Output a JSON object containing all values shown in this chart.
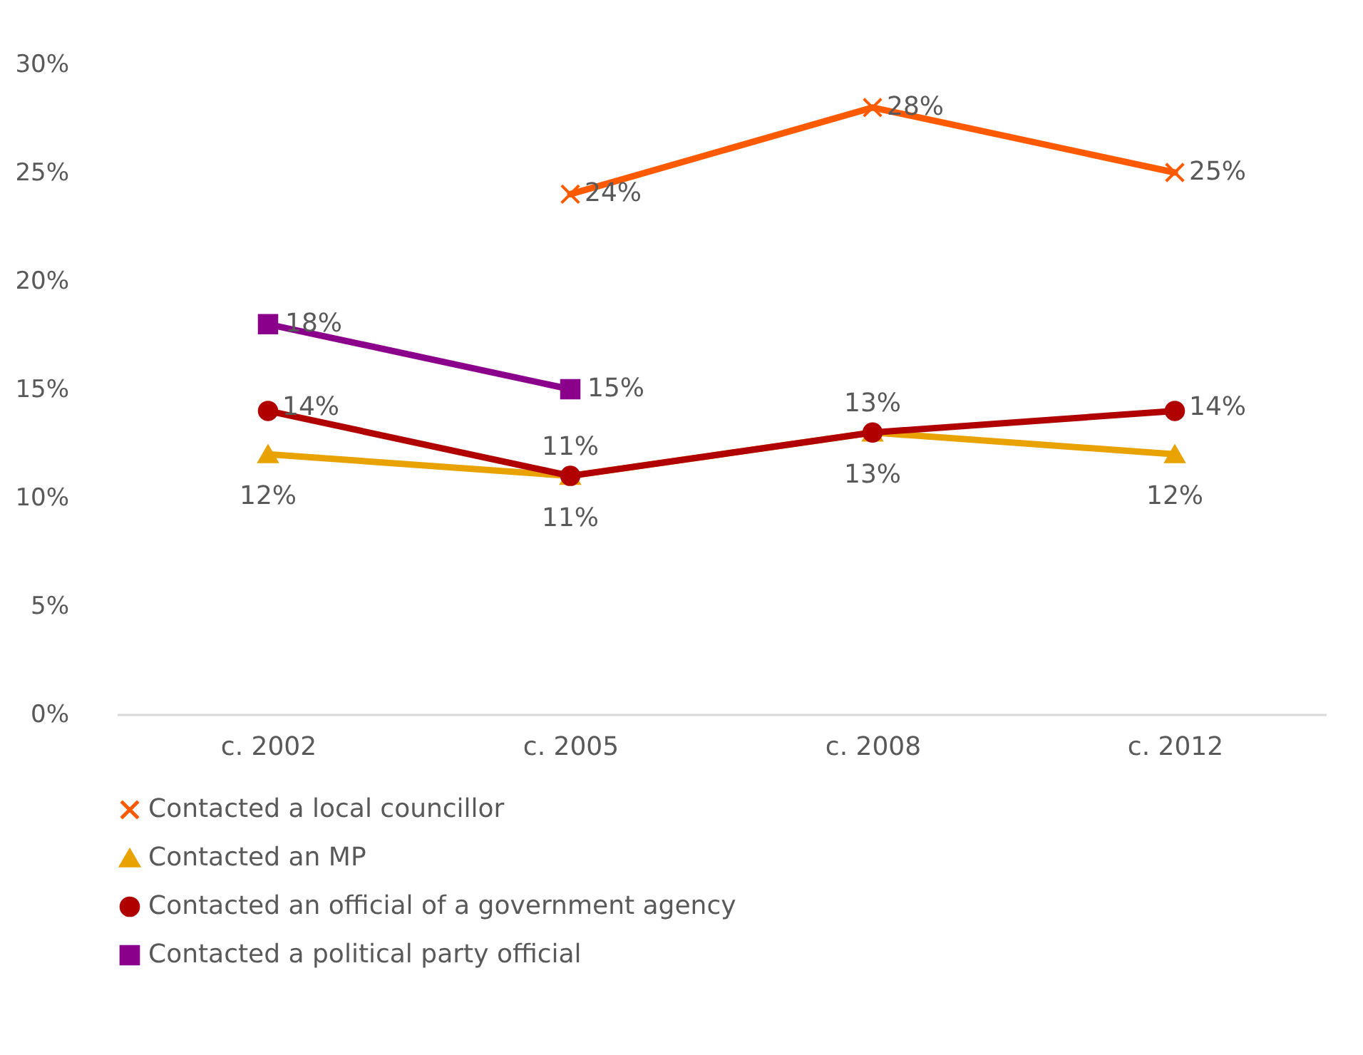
{
  "chart_data": {
    "type": "line",
    "categories": [
      "c. 2002",
      "c. 2005",
      "c. 2008",
      "c. 2012"
    ],
    "series": [
      {
        "name": "Contacted a local councillor",
        "color": "#ff5a00",
        "marker": "cross",
        "values": [
          null,
          24,
          28,
          25
        ],
        "value_labels": [
          null,
          "24%",
          "28%",
          "25%"
        ]
      },
      {
        "name": "Contacted an MP",
        "color": "#e8a202",
        "marker": "triangle",
        "values": [
          12,
          11,
          13,
          12
        ],
        "value_labels": [
          "12%",
          "11%",
          "13%",
          "12%"
        ]
      },
      {
        "name": "Contacted an official of a government agency",
        "color": "#b00000",
        "marker": "circle",
        "values": [
          14,
          11,
          13,
          14
        ],
        "value_labels": [
          "14%",
          "11%",
          "13%",
          "14%"
        ]
      },
      {
        "name": "Contacted a political party official",
        "color": "#8b008b",
        "marker": "square",
        "values": [
          18,
          15,
          null,
          null
        ],
        "value_labels": [
          "18%",
          "15%",
          null,
          null
        ]
      }
    ],
    "ylim": [
      0,
      30
    ],
    "yticks": [
      {
        "value": 0,
        "label": "0%"
      },
      {
        "value": 5,
        "label": "5%"
      },
      {
        "value": 10,
        "label": "10%"
      },
      {
        "value": 15,
        "label": "15%"
      },
      {
        "value": 20,
        "label": "20%"
      },
      {
        "value": 25,
        "label": "25%"
      },
      {
        "value": 30,
        "label": "30%"
      }
    ],
    "grid": false,
    "legend": "bottom",
    "line_style": "solid"
  }
}
